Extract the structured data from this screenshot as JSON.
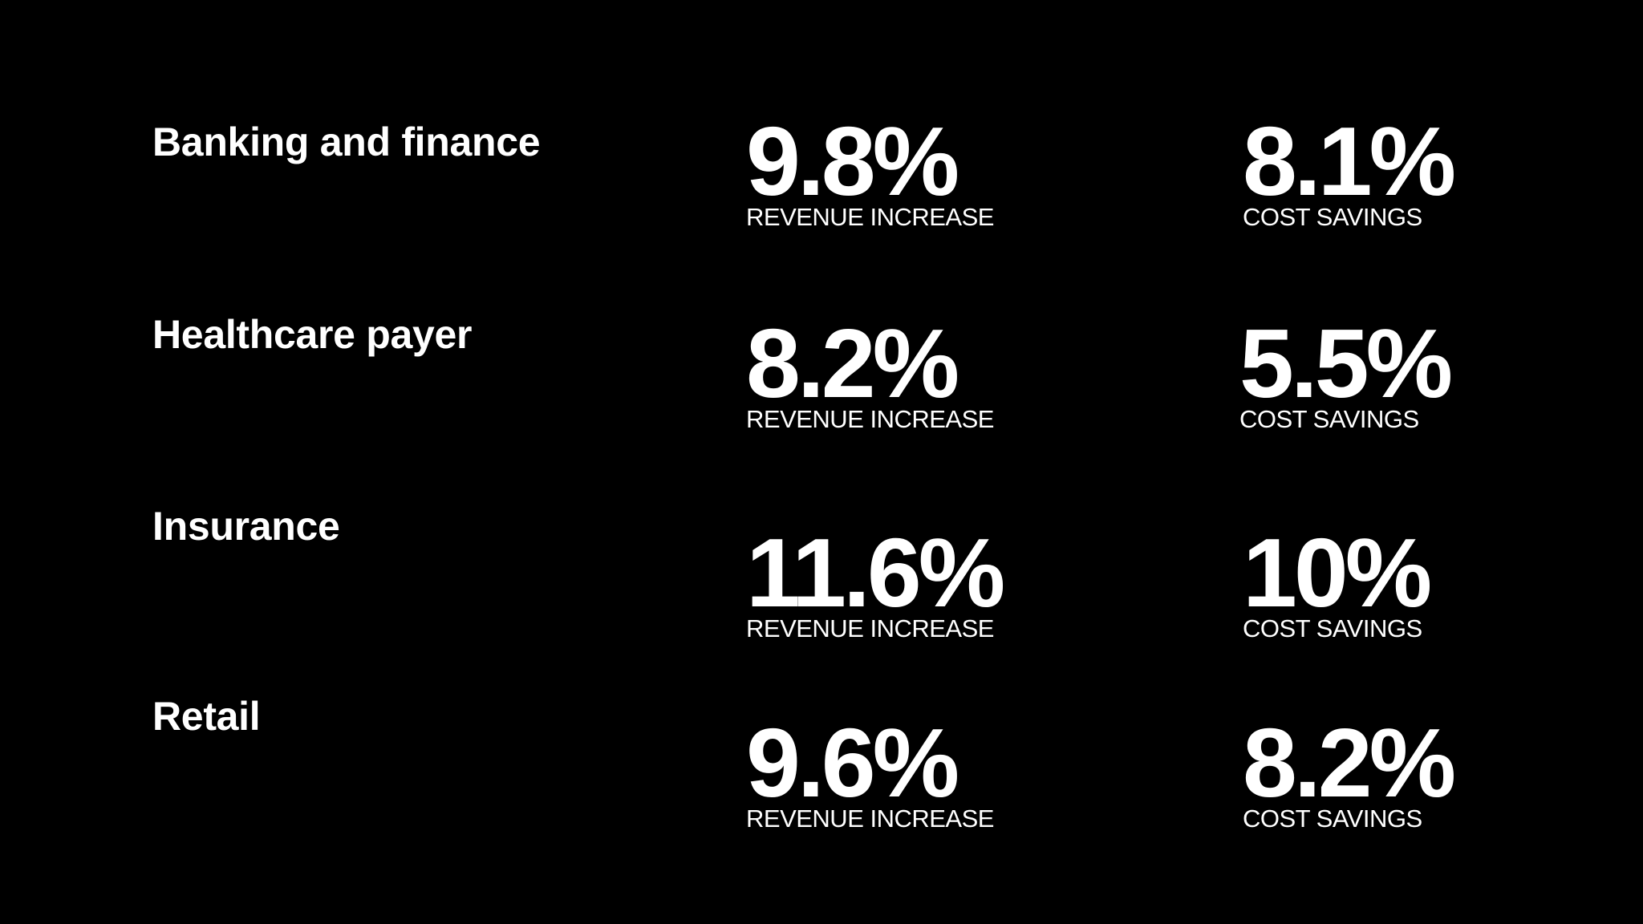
{
  "rows": [
    {
      "industry": "Banking and finance",
      "revenue": {
        "value": "9.8%",
        "label": "REVENUE INCREASE"
      },
      "savings": {
        "value": "8.1%",
        "label": "COST SAVINGS"
      }
    },
    {
      "industry": "Healthcare payer",
      "revenue": {
        "value": "8.2%",
        "label": "REVENUE INCREASE"
      },
      "savings": {
        "value": "5.5%",
        "label": "COST SAVINGS"
      }
    },
    {
      "industry": "Insurance",
      "revenue": {
        "value": "11.6%",
        "label": "REVENUE INCREASE"
      },
      "savings": {
        "value": "10%",
        "label": "COST SAVINGS"
      }
    },
    {
      "industry": "Retail",
      "revenue": {
        "value": "9.6%",
        "label": "REVENUE INCREASE"
      },
      "savings": {
        "value": "8.2%",
        "label": "COST SAVINGS"
      }
    }
  ],
  "colors": {
    "background": "#000000",
    "text": "#ffffff"
  }
}
